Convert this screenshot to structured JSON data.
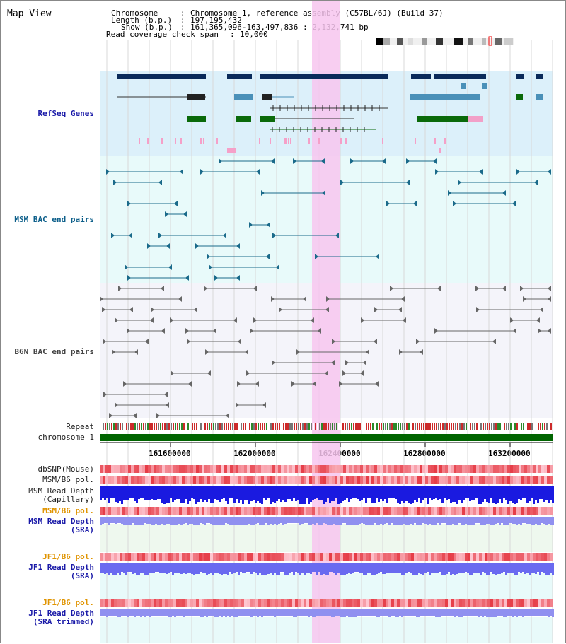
{
  "title": "Map View",
  "header": {
    "chromosome_label": "Chromosome",
    "chromosome_value": "Chromosome 1, reference assembly (C57BL/6J) (Build 37)",
    "length_label": "Length (b.p.)",
    "length_value": "197,195,432",
    "show_label": "Show (b.p.)",
    "show_value": "161,365,096-163,497,836 : 2,132,741 bp",
    "coverage_label": "Read coverage check span",
    "coverage_value": "10,000"
  },
  "tracks": {
    "refseq": "RefSeq Genes",
    "msm_bac": "MSM BAC end pairs",
    "b6n_bac": "B6N BAC end pairs",
    "repeat": "Repeat",
    "chromosome": "chromosome 1",
    "dbsnp": "dbSNP(Mouse)",
    "msm_b6_pol": "MSM/B6 pol.",
    "msm_read_depth": "MSM Read Depth\n(Capillary)",
    "msm_b6_pol_2": "MSM/B6 pol.",
    "msm_read_depth_sra": "MSM Read Depth\n(SRA)",
    "jf1_b6_pol": "JF1/B6 pol.",
    "jf1_read_depth_sra": "JF1 Read Depth\n(SRA)",
    "jf1_b6_pol_2": "JF1/B6 pol.",
    "jf1_read_depth_trim": "JF1 Read Depth\n(SRA trimmed)"
  },
  "axis": {
    "ticks": [
      "161600000",
      "162000000",
      "162400000",
      "162800000",
      "163200000"
    ]
  },
  "colors": {
    "highlight": "#f7c6ee",
    "refseq_bg": "#dcf0fa",
    "msm_bg": "#e8fafa",
    "b6n_bg": "#f4f4fa",
    "chrom": "#006400"
  }
}
